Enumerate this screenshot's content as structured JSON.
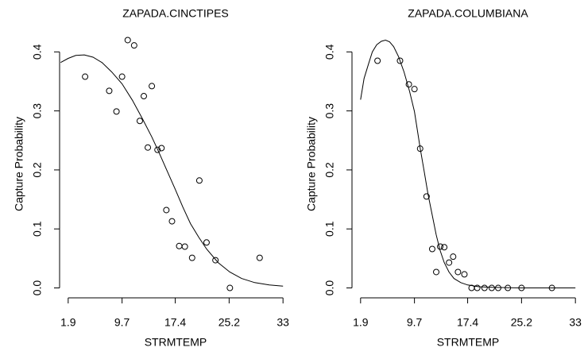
{
  "chart_data": [
    {
      "type": "scatter",
      "title": "ZAPADA.CINCTIPES",
      "xlabel": "STRMTEMP",
      "ylabel": "Capture Probability",
      "x": [
        4.35,
        7.84,
        8.89,
        9.7,
        10.52,
        11.45,
        12.85,
        12.27,
        14.01,
        13.43,
        14.83,
        15.41,
        16.11,
        16.93,
        17.97,
        18.79,
        19.84,
        20.89,
        21.93,
        23.22,
        25.31,
        29.62
      ],
      "y": [
        0.358,
        0.334,
        0.299,
        0.358,
        0.42,
        0.411,
        0.325,
        0.283,
        0.342,
        0.238,
        0.234,
        0.237,
        0.132,
        0.113,
        0.071,
        0.07,
        0.051,
        0.182,
        0.077,
        0.047,
        0.0,
        0.051
      ],
      "fit_x": [
        0.8,
        1.9,
        3.0,
        4.23,
        5.5,
        6.79,
        8.2,
        9.7,
        11.2,
        12.6,
        14.0,
        14.95,
        16.2,
        17.4,
        18.5,
        19.6,
        20.8,
        21.94,
        23.6,
        25.3,
        27.0,
        28.9,
        31.0,
        33.0
      ],
      "fit_y": [
        0.382,
        0.389,
        0.394,
        0.395,
        0.391,
        0.382,
        0.366,
        0.346,
        0.318,
        0.288,
        0.256,
        0.232,
        0.199,
        0.167,
        0.137,
        0.109,
        0.086,
        0.066,
        0.043,
        0.027,
        0.016,
        0.009,
        0.005,
        0.003
      ],
      "xlim": [
        0.656,
        34.244
      ],
      "ylim": [
        -0.0168,
        0.4368
      ],
      "xticks": [
        1.9,
        9.7,
        17.4,
        25.2,
        33
      ],
      "yticks": [
        {
          "value": 0,
          "label": "0.0"
        },
        0.1,
        0.2,
        0.3,
        0.4
      ]
    },
    {
      "type": "scatter",
      "title": "ZAPADA.COLUMBIANA",
      "xlabel": "STRMTEMP",
      "ylabel": "Capture Probability",
      "x": [
        4.35,
        7.61,
        8.89,
        9.7,
        10.52,
        11.45,
        12.27,
        12.85,
        13.43,
        14.01,
        14.71,
        15.3,
        16.0,
        16.93,
        17.97,
        18.79,
        19.84,
        20.89,
        21.82,
        23.22,
        25.2,
        29.6
      ],
      "y": [
        0.385,
        0.385,
        0.345,
        0.337,
        0.236,
        0.155,
        0.066,
        0.027,
        0.07,
        0.069,
        0.043,
        0.053,
        0.027,
        0.023,
        0.0,
        0.0,
        0.0,
        0.0,
        0.0,
        0.0,
        0.0,
        0.0
      ],
      "fit_x": [
        1.9,
        2.4,
        3.06,
        3.6,
        4.23,
        4.9,
        5.51,
        6.1,
        6.68,
        7.4,
        8.19,
        9.0,
        9.7,
        10.52,
        11.1,
        11.68,
        12.3,
        12.85,
        13.4,
        14.01,
        14.7,
        15.41,
        16.4,
        17.4,
        19.0,
        21.0,
        25.0,
        33.0
      ],
      "fit_y": [
        0.319,
        0.355,
        0.38,
        0.4,
        0.412,
        0.418,
        0.42,
        0.417,
        0.409,
        0.392,
        0.366,
        0.333,
        0.299,
        0.237,
        0.198,
        0.158,
        0.122,
        0.09,
        0.064,
        0.043,
        0.027,
        0.016,
        0.009,
        0.005,
        0.002,
        0.001,
        0.0,
        0.0
      ],
      "xlim": [
        0.656,
        34.244
      ],
      "ylim": [
        -0.0168,
        0.4368
      ],
      "xticks": [
        1.9,
        9.7,
        17.4,
        25.2,
        33
      ],
      "yticks": [
        {
          "value": 0,
          "label": "0.0"
        },
        0.1,
        0.2,
        0.3,
        0.4
      ]
    }
  ]
}
